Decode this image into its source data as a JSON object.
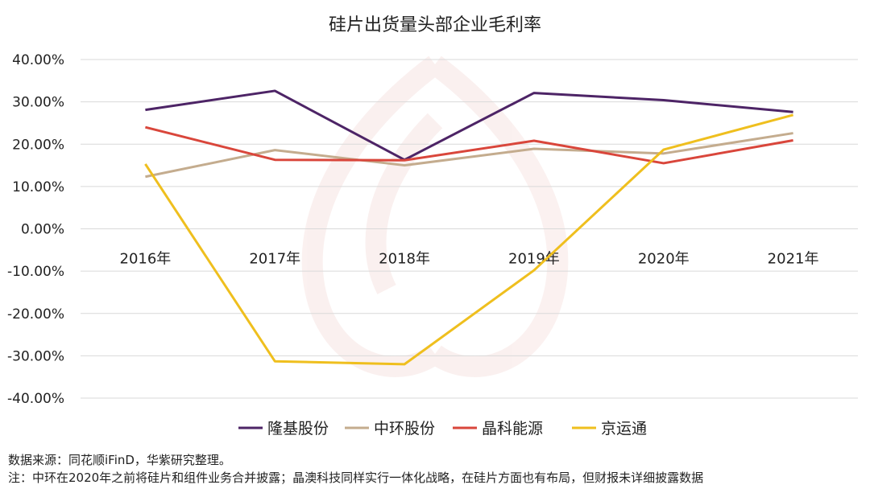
{
  "chart_data": {
    "type": "line",
    "title": "硅片出货量头部企业毛利率",
    "categories": [
      "2016年",
      "2017年",
      "2018年",
      "2019年",
      "2020年",
      "2021年"
    ],
    "ylim": [
      -40,
      40
    ],
    "y_ticks": [
      "40.00%",
      "30.00%",
      "20.00%",
      "10.00%",
      "0.00%",
      "-10.00%",
      "-20.00%",
      "-30.00%",
      "-40.00%"
    ],
    "grid": true,
    "legend_position": "bottom",
    "series": [
      {
        "name": "隆基股份",
        "color": "#4d2466",
        "values": [
          28.1,
          32.6,
          16.3,
          32.1,
          30.4,
          27.6
        ]
      },
      {
        "name": "中环股份",
        "color": "#c4ac8e",
        "values": [
          12.3,
          18.6,
          15.0,
          18.9,
          17.8,
          22.6
        ]
      },
      {
        "name": "晶科能源",
        "color": "#d9463b",
        "values": [
          24.0,
          16.3,
          16.2,
          20.8,
          15.5,
          20.9
        ]
      },
      {
        "name": "京运通",
        "color": "#efbf1e",
        "values": [
          15.3,
          -31.3,
          -32.0,
          -9.8,
          18.7,
          26.9
        ]
      }
    ]
  },
  "notes": {
    "source": "数据来源：同花顺iFinD，华紫研究整理。",
    "footnote": "注：中环在2020年之前将硅片和组件业务合并披露；晶澳科技同样实行一体化战略，在硅片方面也有布局，但财报未详细披露数据"
  }
}
